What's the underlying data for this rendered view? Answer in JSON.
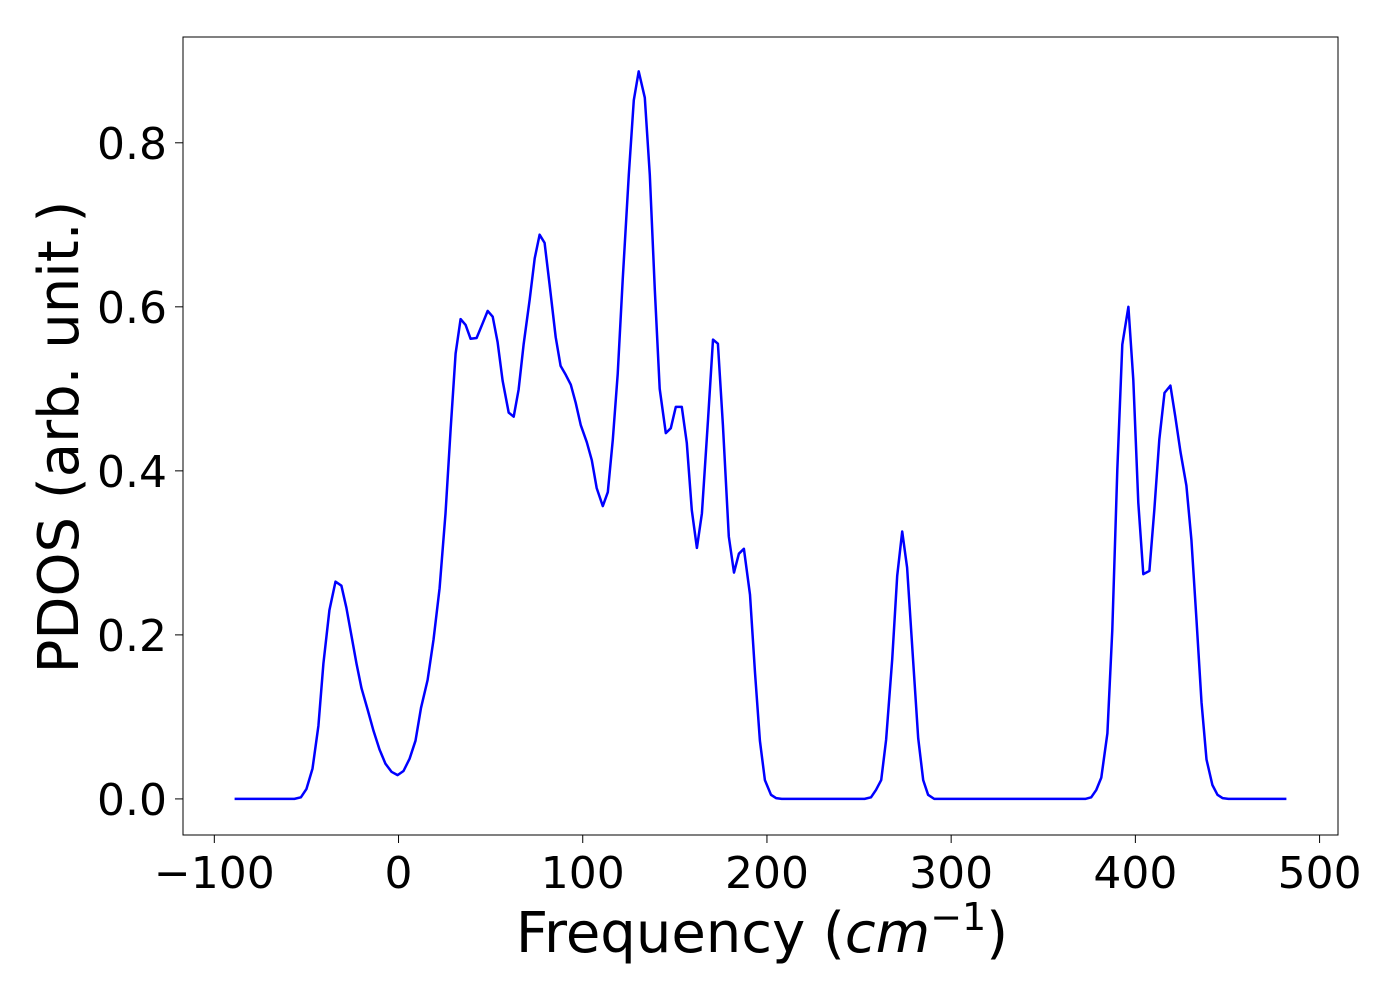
{
  "chart_data": {
    "type": "line",
    "title": "",
    "xlabel": "Frequency (",
    "xlabel_math": "cm",
    "xlabel_sup": "−1",
    "xlabel_end": ")",
    "ylabel": "PDOS (arb. unit.)",
    "xlim": [
      -117,
      510
    ],
    "ylim": [
      -0.044,
      0.929
    ],
    "xticks": [
      -100,
      0,
      100,
      200,
      300,
      400,
      500
    ],
    "xtick_labels": [
      "−100",
      "0",
      "100",
      "200",
      "300",
      "400",
      "500"
    ],
    "yticks": [
      0.0,
      0.2,
      0.4,
      0.6,
      0.8
    ],
    "ytick_labels": [
      "0.0",
      "0.2",
      "0.4",
      "0.6",
      "0.8"
    ],
    "grid": false,
    "series": [
      {
        "color": "#0000ff",
        "x": [
          -89,
          -56.5,
          -53,
          -50,
          -46.7,
          -43.5,
          -40.8,
          -37.5,
          -34.2,
          -31,
          -28.3,
          -25.5,
          -22.8,
          -20.1,
          -16.8,
          -13.6,
          -10.3,
          -7.1,
          -3.8,
          -0.5,
          2.7,
          6,
          9.2,
          12.2,
          15.8,
          19,
          22.3,
          25.5,
          28.3,
          31,
          33.7,
          36.4,
          39.1,
          42.4,
          45.7,
          48.4,
          51.1,
          53.8,
          56.5,
          59.8,
          62.5,
          65.2,
          67.9,
          71.2,
          73.9,
          76.6,
          79.3,
          82,
          85.3,
          88,
          90.8,
          93.5,
          96.2,
          98.9,
          102.2,
          104.9,
          107.6,
          110.9,
          113.6,
          116.3,
          119,
          121.7,
          125,
          127.7,
          130.4,
          133.7,
          136.4,
          139.1,
          141.8,
          145.1,
          147.8,
          150.5,
          153.8,
          156.5,
          159.2,
          162,
          164.7,
          168,
          170.7,
          173.4,
          176.1,
          179.3,
          182.1,
          184.8,
          187.5,
          190.8,
          193.5,
          196.2,
          198.9,
          202.2,
          204.9,
          208,
          253,
          256.5,
          259.2,
          262,
          264.7,
          268,
          270.7,
          273.4,
          276.1,
          279.3,
          282.1,
          284.8,
          287.5,
          290.8,
          372.8,
          376,
          378.8,
          381.5,
          384.8,
          387.5,
          390.2,
          392.9,
          396.2,
          398.9,
          401.6,
          404.3,
          407.6,
          410.3,
          413,
          415.8,
          419,
          421.7,
          424.5,
          427.7,
          430.4,
          433.2,
          435.9,
          438.6,
          441.8,
          444.6,
          447.3,
          450.5,
          482
        ],
        "y": [
          0,
          0,
          0.002,
          0.012,
          0.037,
          0.089,
          0.165,
          0.23,
          0.265,
          0.26,
          0.233,
          0.198,
          0.165,
          0.135,
          0.109,
          0.083,
          0.06,
          0.043,
          0.033,
          0.029,
          0.034,
          0.049,
          0.071,
          0.111,
          0.145,
          0.194,
          0.257,
          0.348,
          0.452,
          0.543,
          0.585,
          0.578,
          0.561,
          0.562,
          0.58,
          0.595,
          0.588,
          0.557,
          0.51,
          0.471,
          0.466,
          0.499,
          0.554,
          0.609,
          0.659,
          0.688,
          0.678,
          0.627,
          0.563,
          0.528,
          0.517,
          0.505,
          0.483,
          0.456,
          0.435,
          0.413,
          0.379,
          0.357,
          0.374,
          0.438,
          0.518,
          0.633,
          0.761,
          0.852,
          0.887,
          0.855,
          0.761,
          0.621,
          0.5,
          0.446,
          0.452,
          0.478,
          0.478,
          0.434,
          0.352,
          0.306,
          0.348,
          0.462,
          0.56,
          0.555,
          0.456,
          0.32,
          0.276,
          0.299,
          0.305,
          0.249,
          0.154,
          0.071,
          0.023,
          0.005,
          0.001,
          0,
          0,
          0.002,
          0.011,
          0.023,
          0.072,
          0.17,
          0.272,
          0.326,
          0.282,
          0.171,
          0.074,
          0.023,
          0.005,
          0,
          0,
          0.002,
          0.011,
          0.026,
          0.08,
          0.206,
          0.401,
          0.554,
          0.6,
          0.511,
          0.361,
          0.274,
          0.278,
          0.352,
          0.438,
          0.495,
          0.504,
          0.466,
          0.423,
          0.382,
          0.316,
          0.218,
          0.118,
          0.048,
          0.017,
          0.005,
          0.001,
          0,
          0
        ]
      }
    ]
  }
}
